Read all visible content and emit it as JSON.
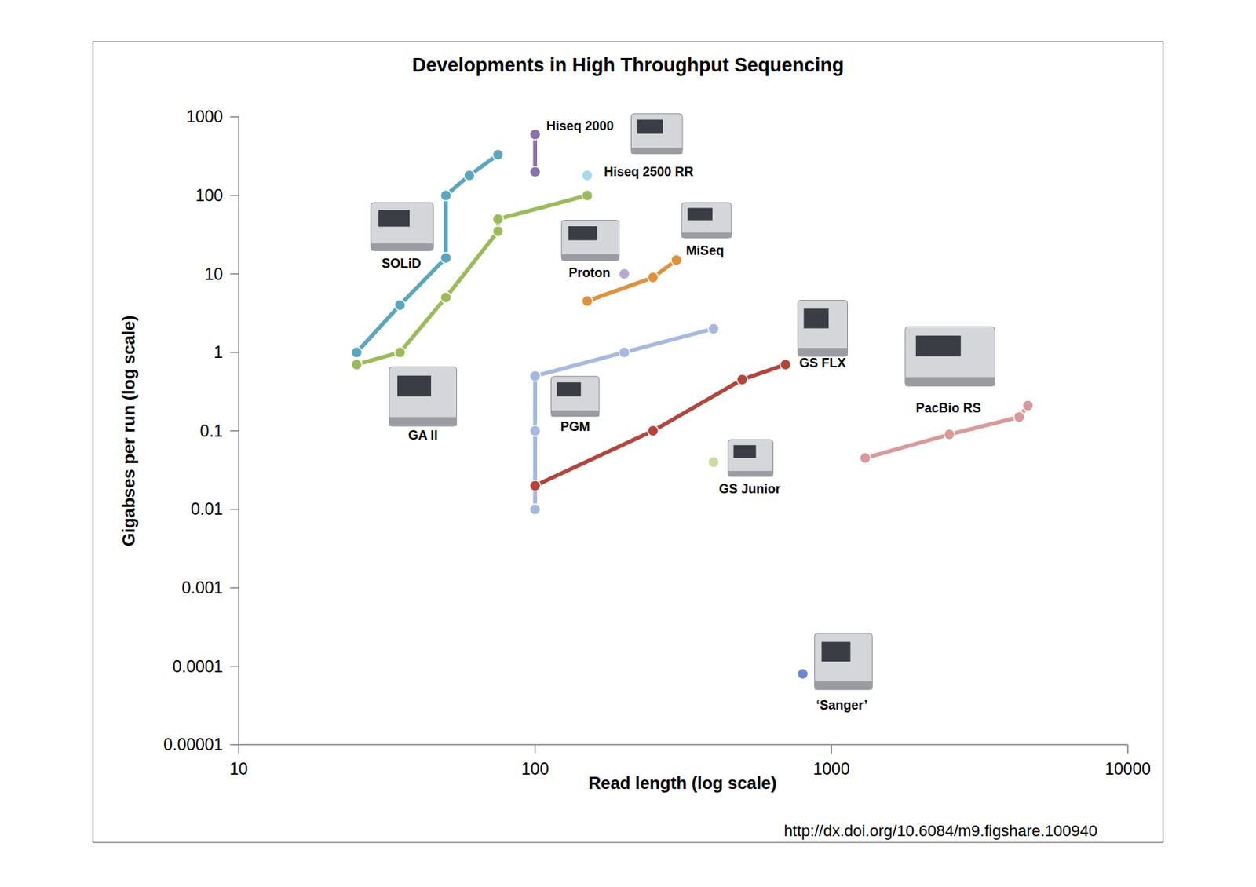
{
  "chart_data": {
    "type": "line",
    "title": "Developments in High Throughput Sequencing",
    "x_label": "Read length (log scale)",
    "y_label": "Gigabses per run (log scale)",
    "source": "http://dx.doi.org/10.6084/m9.figshare.100940",
    "log": true,
    "grid": false,
    "xlim": [
      10,
      10000
    ],
    "xticks": [
      10,
      100,
      1000,
      10000
    ],
    "ylim": [
      1e-05,
      1000
    ],
    "yticks": [
      1e-05,
      0.0001,
      0.001,
      0.01,
      0.1,
      1,
      10,
      100,
      1000
    ],
    "series": [
      {
        "name": "SOLiD",
        "color": "#5aa6bd",
        "marker": "circle",
        "x": [
          25,
          35,
          50,
          50,
          60,
          75
        ],
        "values": [
          1,
          4,
          16,
          100,
          180,
          330
        ]
      },
      {
        "name": "GA II",
        "color": "#9bbb59",
        "marker": "circle",
        "x": [
          25,
          35,
          50,
          75,
          75,
          150
        ],
        "values": [
          0.7,
          1,
          5,
          35,
          50,
          100
        ]
      },
      {
        "name": "Hiseq 2000",
        "color": "#8b71a8",
        "marker": "circle",
        "x": [
          100,
          100
        ],
        "values": [
          600,
          200
        ]
      },
      {
        "name": "Hiseq 2500 RR",
        "color": "#a9d8ea",
        "marker": "circle",
        "x": [
          150
        ],
        "values": [
          180
        ]
      },
      {
        "name": "Proton",
        "color": "#b9a8d3",
        "marker": "circle",
        "x": [
          200
        ],
        "values": [
          10
        ]
      },
      {
        "name": "MiSeq",
        "color": "#e0913c",
        "marker": "circle",
        "x": [
          150,
          250,
          300
        ],
        "values": [
          4.5,
          9,
          15
        ]
      },
      {
        "name": "PGM",
        "color": "#a6b9e0",
        "marker": "circle",
        "x": [
          100,
          100,
          100,
          200,
          400
        ],
        "values": [
          0.01,
          0.1,
          0.5,
          1,
          2
        ]
      },
      {
        "name": "GS FLX",
        "color": "#b3453c",
        "marker": "circle",
        "x": [
          100,
          250,
          500,
          700
        ],
        "values": [
          0.02,
          0.1,
          0.45,
          0.7
        ]
      },
      {
        "name": "GS Junior",
        "color": "#c8dba0",
        "marker": "circle",
        "x": [
          400
        ],
        "values": [
          0.04
        ]
      },
      {
        "name": "PacBio RS",
        "color": "#d9999a",
        "marker": "circle",
        "x": [
          1300,
          2500,
          4300,
          4600
        ],
        "values": [
          0.045,
          0.09,
          0.15,
          0.21
        ]
      },
      {
        "name": "‘Sanger’",
        "color": "#6b87cf",
        "marker": "circle",
        "x": [
          800
        ],
        "values": [
          8e-05
        ]
      }
    ]
  }
}
